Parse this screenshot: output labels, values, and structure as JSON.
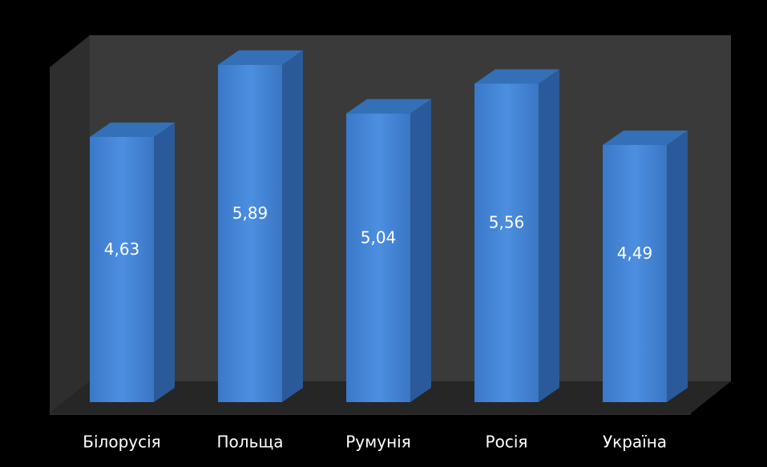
{
  "chart_data": {
    "type": "bar",
    "style": "3d-column",
    "categories": [
      "Білорусія",
      "Польща",
      "Румунія",
      "Росія",
      "Україна"
    ],
    "values": [
      4.63,
      5.89,
      5.04,
      5.56,
      4.49
    ],
    "value_labels": [
      "4,63",
      "5,89",
      "5,04",
      "5,56",
      "4,49"
    ],
    "title": "",
    "xlabel": "",
    "ylabel": "",
    "ylim": [
      0,
      6.7
    ],
    "grid": false,
    "legend": "none",
    "colors": {
      "background": "#000000",
      "wall": "#3a3a3a",
      "floor": "#262626",
      "bar_front": "#3d7ed0",
      "bar_front_light": "#4a8ee0",
      "bar_side": "#2a5a9a",
      "bar_top": "#3370b8",
      "text": "#ffffff"
    }
  }
}
